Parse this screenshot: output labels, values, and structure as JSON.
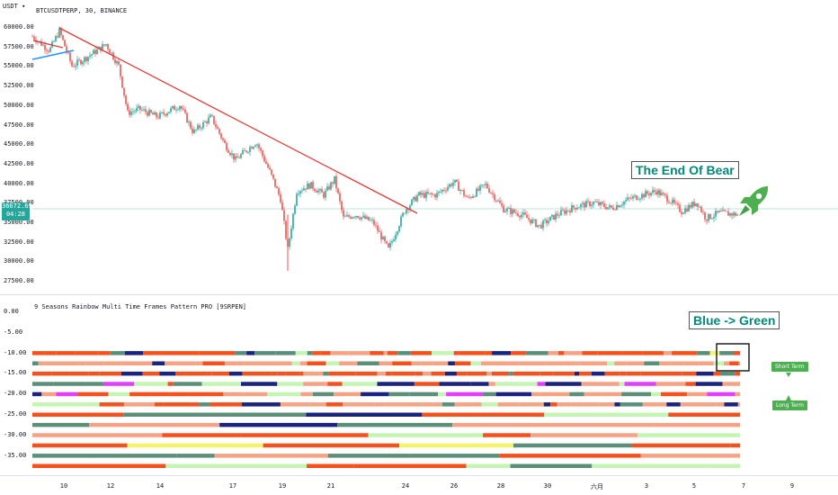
{
  "main": {
    "unit_label": "USDT",
    "symbol_title": "BTCUSDTPERP, 30, BINANCE",
    "y_ticks": [
      "60000.00",
      "57500.00",
      "55000.00",
      "52500.00",
      "50000.00",
      "47500.00",
      "45000.00",
      "42500.00",
      "40000.00",
      "37500.00",
      "35000.00",
      "32500.00",
      "30000.00",
      "27500.00"
    ],
    "last_price": "36672.69",
    "countdown": "04:28",
    "annotation": "The End Of Bear",
    "colors": {
      "up": "#26a69a",
      "down": "#ef5350",
      "trend_red": "#e53935",
      "trend_blue": "#2196f3",
      "price_line": "#26a69a"
    }
  },
  "indicator": {
    "title": "9 Seasons Rainbow Multi Time Frames Pattern PRO [9SRPEN]",
    "y_ticks": [
      "0.00",
      "-5.00",
      "-10.00",
      "-15.00",
      "-20.00",
      "-25.00",
      "-30.00",
      "-35.00"
    ],
    "annotation": "Blue -> Green",
    "short_term_label": "Short Term",
    "long_term_label": "Long Term",
    "palette": {
      "orange": "#f4511e",
      "salmon": "#f4a384",
      "teal": "#5b8f7a",
      "lightgreen": "#c5f5b4",
      "navy": "#1a237e",
      "violet": "#e040fb",
      "yellow": "#f4f46a"
    }
  },
  "x_axis": [
    "10",
    "12",
    "14",
    "17",
    "19",
    "21",
    "24",
    "26",
    "28",
    "30",
    "六月",
    "3",
    "5",
    "7",
    "9"
  ]
}
